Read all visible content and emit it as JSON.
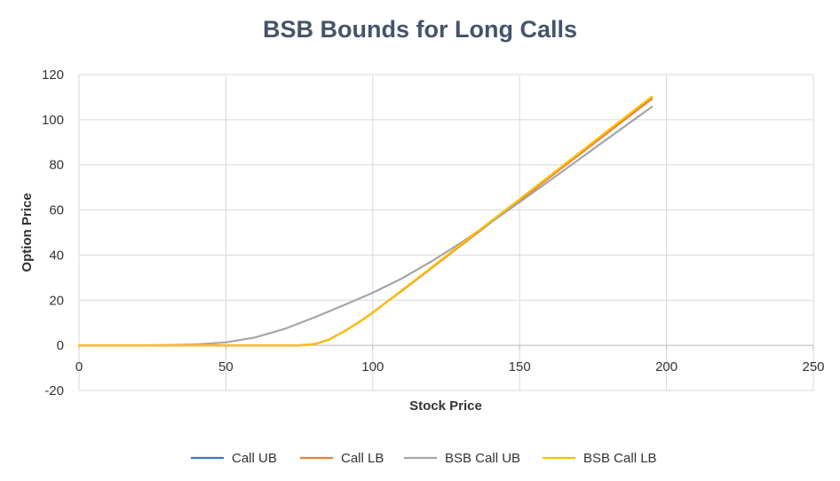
{
  "chart_data": {
    "type": "line",
    "title": "BSB Bounds for Long Calls",
    "xlabel": "Stock Price",
    "ylabel": "Option Price",
    "xlim": [
      0,
      250
    ],
    "ylim": [
      -20,
      120
    ],
    "xticks": [
      0,
      50,
      100,
      150,
      200,
      250
    ],
    "yticks": [
      -20,
      0,
      20,
      40,
      60,
      80,
      100,
      120
    ],
    "grid": true,
    "legend_position": "bottom",
    "series": [
      {
        "name": "Call UB",
        "color": "#4472c4",
        "x": [
          0,
          10,
          20,
          30,
          40,
          50,
          60,
          70,
          75,
          80,
          85,
          90,
          95,
          100,
          105,
          110,
          120,
          130,
          140,
          150,
          160,
          170,
          180,
          190,
          195
        ],
        "y": [
          0,
          0,
          0,
          0,
          0,
          0,
          0,
          0,
          0,
          0.5,
          2.5,
          6,
          10,
          14.5,
          19.5,
          24.3,
          34.3,
          44.3,
          54.3,
          64.3,
          74.3,
          84.3,
          94.3,
          104.3,
          109.3
        ]
      },
      {
        "name": "Call LB",
        "color": "#ed7d31",
        "x": [
          0,
          10,
          20,
          30,
          40,
          50,
          60,
          70,
          75,
          80,
          85,
          90,
          95,
          100,
          105,
          110,
          120,
          130,
          140,
          150,
          160,
          170,
          180,
          190,
          195
        ],
        "y": [
          0,
          0,
          0,
          0,
          0,
          0,
          0,
          0,
          0,
          0.5,
          2.5,
          6,
          10,
          14.5,
          19.5,
          24.3,
          34.3,
          44.3,
          54.3,
          64.3,
          74.3,
          84.3,
          94.3,
          104.3,
          109.3
        ]
      },
      {
        "name": "BSB Call UB",
        "color": "#a5a5a5",
        "x": [
          0,
          10,
          20,
          30,
          40,
          50,
          60,
          70,
          80,
          90,
          100,
          110,
          120,
          130,
          140,
          150,
          160,
          170,
          180,
          190,
          195
        ],
        "y": [
          0,
          0,
          0,
          0.1,
          0.4,
          1.3,
          3.5,
          7.3,
          12.3,
          17.7,
          23.3,
          29.7,
          37.2,
          45.4,
          54.3,
          63.5,
          72.8,
          82.2,
          91.6,
          101,
          105.7
        ]
      },
      {
        "name": "BSB Call LB",
        "color": "#ffc000",
        "x": [
          0,
          10,
          20,
          30,
          40,
          50,
          60,
          70,
          75,
          80,
          85,
          90,
          95,
          100,
          105,
          110,
          120,
          130,
          140,
          150,
          160,
          170,
          180,
          190,
          195
        ],
        "y": [
          0,
          0,
          0,
          0,
          0,
          0,
          0,
          0,
          0,
          0.5,
          2.5,
          6,
          10,
          14.5,
          19.5,
          24.5,
          34.6,
          44.7,
          54.8,
          64.8,
          74.9,
          85,
          95.1,
          105.2,
          110.2
        ]
      }
    ]
  }
}
